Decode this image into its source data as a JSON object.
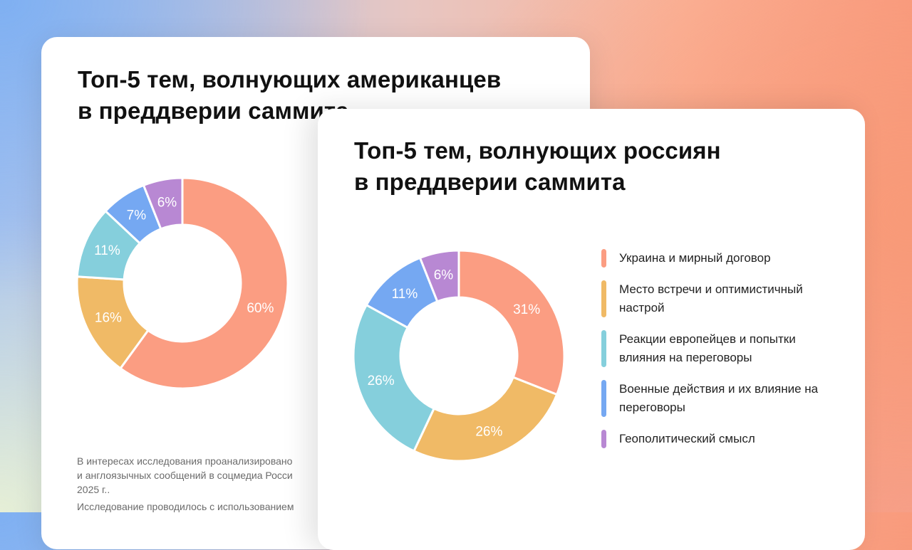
{
  "colors": {
    "salmon": "#fb9d82",
    "yellow": "#f0ba66",
    "teal": "#85cfdc",
    "blue": "#75a8f2",
    "purple": "#b888d3"
  },
  "card_us": {
    "title_lines": [
      "Топ-5 тем, волнующих американцев",
      "в преддверии саммита"
    ],
    "note_lines": [
      "В интересах исследования проанализировано",
      "и англоязычных сообщений в соцмедиа Росси",
      "2025 г.."
    ],
    "note2": "Исследование проводилось с использованием"
  },
  "card_ru": {
    "title_lines": [
      "Топ-5 тем, волнующих россиян",
      "в преддверии саммита"
    ],
    "legend": [
      "Украина и мирный договор",
      "Место встречи и оптимистичный настрой",
      "Реакции европейцев и попытки влияния на переговоры",
      "Военные действия и их влияние на переговоры",
      "Геополитический смысл"
    ]
  },
  "chart_data": [
    {
      "type": "pie",
      "title": "Топ-5 тем, волнующих американцев в преддверии саммита",
      "values": [
        60,
        16,
        11,
        7,
        6
      ],
      "labels": [
        "60%",
        "16%",
        "11%",
        "7%",
        "6%"
      ],
      "colors": [
        "#fb9d82",
        "#f0ba66",
        "#85cfdc",
        "#75a8f2",
        "#b888d3"
      ]
    },
    {
      "type": "pie",
      "title": "Топ-5 тем, волнующих россиян в преддверии саммита",
      "categories": [
        "Украина и мирный договор",
        "Место встречи и оптимистичный настрой",
        "Реакции европейцев и попытки влияния на переговоры",
        "Военные действия и их влияние на переговоры",
        "Геополитический смысл"
      ],
      "values": [
        31,
        26,
        26,
        11,
        6
      ],
      "labels": [
        "31%",
        "26%",
        "26%",
        "11%",
        "6%"
      ],
      "colors": [
        "#fb9d82",
        "#f0ba66",
        "#85cfdc",
        "#75a8f2",
        "#b888d3"
      ],
      "legend": "right"
    }
  ]
}
